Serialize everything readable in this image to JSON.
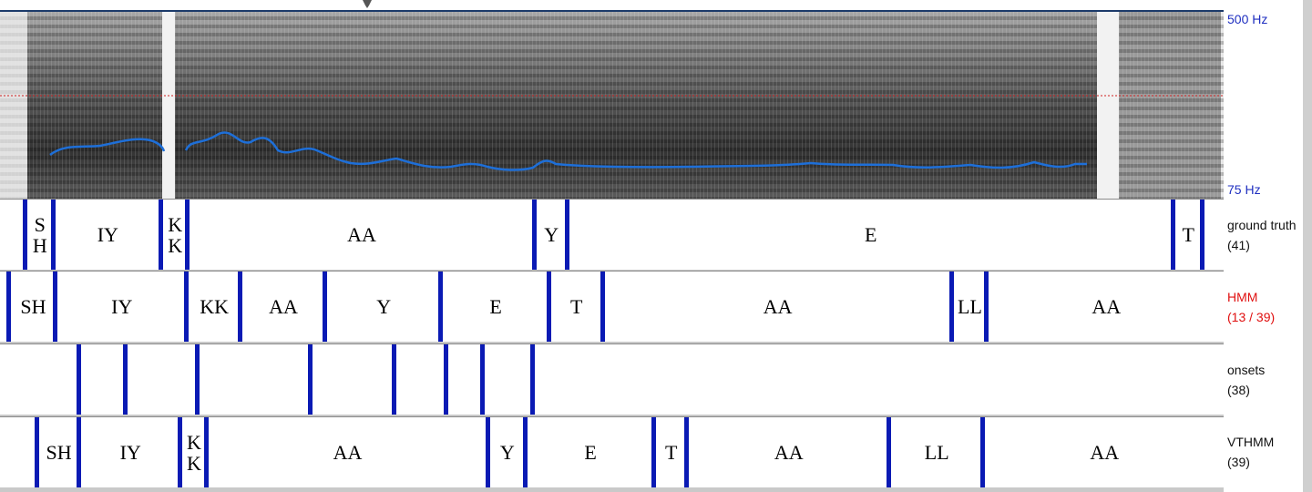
{
  "spectrogram": {
    "freq_top": "500 Hz",
    "freq_bottom": "75 Hz"
  },
  "tiers": [
    {
      "id": "ground-truth",
      "name": "ground truth",
      "count": "(41)",
      "label_color": "#111111",
      "segments": [
        {
          "label": "S\nH",
          "start": 0.02,
          "end": 0.043
        },
        {
          "label": "IY",
          "start": 0.043,
          "end": 0.131
        },
        {
          "label": "K\nK",
          "start": 0.131,
          "end": 0.153
        },
        {
          "label": "AA",
          "start": 0.153,
          "end": 0.436
        },
        {
          "label": "Y",
          "start": 0.436,
          "end": 0.463
        },
        {
          "label": "E",
          "start": 0.463,
          "end": 0.958
        },
        {
          "label": "T",
          "start": 0.958,
          "end": 0.982
        }
      ]
    },
    {
      "id": "hmm",
      "name": "HMM",
      "count": "(13 / 39)",
      "label_color": "#e01010",
      "segments": [
        {
          "label": "SH",
          "start": 0.007,
          "end": 0.045
        },
        {
          "label": "IY",
          "start": 0.045,
          "end": 0.152
        },
        {
          "label": "KK",
          "start": 0.152,
          "end": 0.196
        },
        {
          "label": "AA",
          "start": 0.196,
          "end": 0.265
        },
        {
          "label": "Y",
          "start": 0.265,
          "end": 0.36
        },
        {
          "label": "E",
          "start": 0.36,
          "end": 0.448
        },
        {
          "label": "T",
          "start": 0.448,
          "end": 0.492
        },
        {
          "label": "AA",
          "start": 0.492,
          "end": 0.777
        },
        {
          "label": "LL",
          "start": 0.777,
          "end": 0.806
        },
        {
          "label": "AA",
          "start": 0.806,
          "end": 1.0
        }
      ]
    },
    {
      "id": "onsets",
      "name": "onsets",
      "count": "(38)",
      "label_color": "#111111",
      "boundaries": [
        0.064,
        0.102,
        0.161,
        0.253,
        0.322,
        0.364,
        0.394,
        0.435
      ],
      "segments": []
    },
    {
      "id": "vthmm",
      "name": "VTHMM",
      "count": "(39)",
      "label_color": "#111111",
      "segments": [
        {
          "label": "SH",
          "start": 0.03,
          "end": 0.064
        },
        {
          "label": "IY",
          "start": 0.064,
          "end": 0.147
        },
        {
          "label": "K\nK",
          "start": 0.147,
          "end": 0.168
        },
        {
          "label": "AA",
          "start": 0.168,
          "end": 0.398
        },
        {
          "label": "Y",
          "start": 0.398,
          "end": 0.429
        },
        {
          "label": "E",
          "start": 0.429,
          "end": 0.534
        },
        {
          "label": "T",
          "start": 0.534,
          "end": 0.561
        },
        {
          "label": "AA",
          "start": 0.561,
          "end": 0.726
        },
        {
          "label": "LL",
          "start": 0.726,
          "end": 0.803
        },
        {
          "label": "AA",
          "start": 0.803,
          "end": 1.0
        }
      ]
    }
  ]
}
